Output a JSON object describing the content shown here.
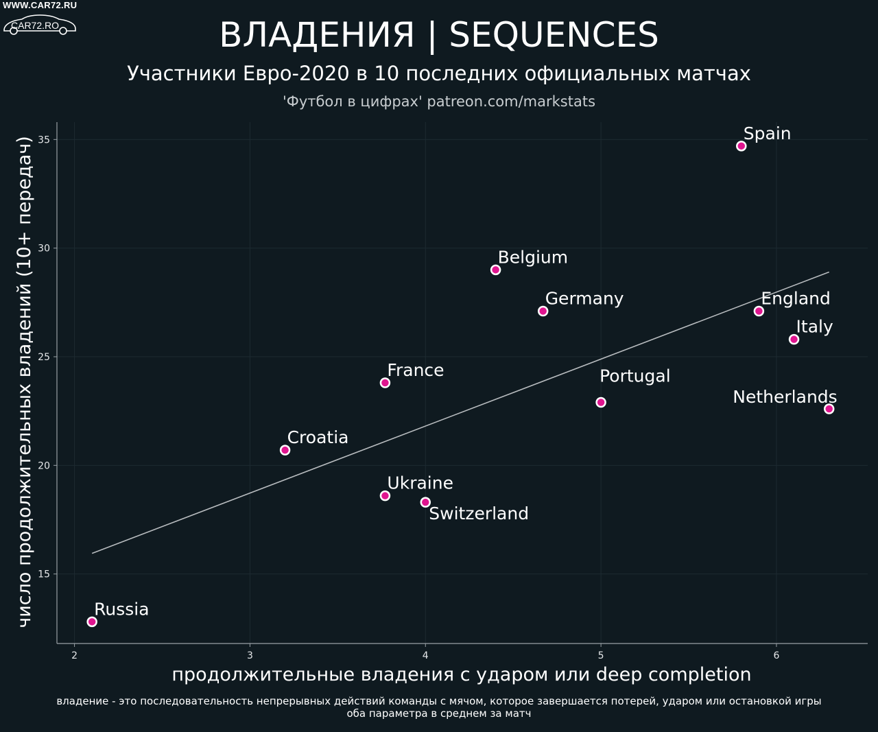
{
  "watermark": {
    "url": "WWW.CAR72.RU",
    "logo_text": "CAR72.RO"
  },
  "header": {
    "title": "ВЛАДЕНИЯ | SEQUENCES",
    "subtitle": "Участники Евро-2020 в 10 последних официальных матчах",
    "caption": "'Футбол в цифрах' patreon.com/markstats"
  },
  "footnotes": {
    "line1": "владение - это последовательность непрерывных действий команды с мячом, которое завершается потерей, ударом или остановкой игры",
    "line2": "оба параметра в среднем за матч"
  },
  "colors": {
    "background": "#0f1a20",
    "point_fill": "#e0158f",
    "point_stroke": "#ffffff",
    "trend_line": "#b8bcbf",
    "axis": "#9aa1a6",
    "grid": "#1d2a31"
  },
  "chart_data": {
    "type": "scatter",
    "xlabel": "продолжительные владения с ударом или deep completion",
    "ylabel": "число продолжительных владений (10+ передач)",
    "xlim": [
      1.9,
      6.52
    ],
    "ylim": [
      11.8,
      35.8
    ],
    "xticks": [
      2,
      3,
      4,
      5,
      6
    ],
    "yticks": [
      15,
      20,
      25,
      30,
      35
    ],
    "grid": true,
    "points": [
      {
        "label": "Spain",
        "x": 5.8,
        "y": 34.7,
        "label_pos": "above-right"
      },
      {
        "label": "Belgium",
        "x": 4.4,
        "y": 29.0,
        "label_pos": "above-right"
      },
      {
        "label": "Germany",
        "x": 4.67,
        "y": 27.1,
        "label_pos": "above-right"
      },
      {
        "label": "England",
        "x": 5.9,
        "y": 27.1,
        "label_pos": "above-right"
      },
      {
        "label": "Italy",
        "x": 6.1,
        "y": 25.8,
        "label_pos": "above-right"
      },
      {
        "label": "France",
        "x": 3.77,
        "y": 23.8,
        "label_pos": "above-right"
      },
      {
        "label": "Portugal",
        "x": 5.0,
        "y": 22.9,
        "label_pos": "above-right-high"
      },
      {
        "label": "Netherlands",
        "x": 6.3,
        "y": 22.6,
        "label_pos": "above-left"
      },
      {
        "label": "Croatia",
        "x": 3.2,
        "y": 20.7,
        "label_pos": "above-right"
      },
      {
        "label": "Ukraine",
        "x": 3.77,
        "y": 18.6,
        "label_pos": "above-right"
      },
      {
        "label": "Switzerland",
        "x": 4.0,
        "y": 18.3,
        "label_pos": "below-right"
      },
      {
        "label": "Russia",
        "x": 2.1,
        "y": 12.8,
        "label_pos": "above-right"
      }
    ],
    "trend_line": {
      "x": [
        2.1,
        6.3
      ],
      "y": [
        15.95,
        28.9
      ]
    }
  }
}
